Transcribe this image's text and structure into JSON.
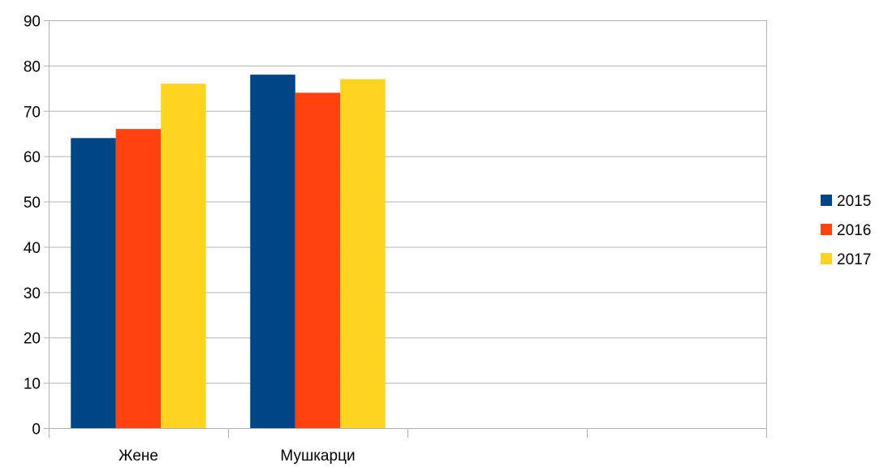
{
  "chart_data": {
    "type": "bar",
    "title": "",
    "xlabel": "",
    "ylabel": "",
    "categories": [
      "Жене",
      "Мушкарци",
      "",
      ""
    ],
    "series": [
      {
        "name": "2015",
        "color": "#004586",
        "values": [
          64,
          78,
          null,
          null
        ]
      },
      {
        "name": "2016",
        "color": "#ff420e",
        "values": [
          66,
          74,
          null,
          null
        ]
      },
      {
        "name": "2017",
        "color": "#ffd320",
        "values": [
          76,
          77,
          null,
          null
        ]
      }
    ],
    "ylim": [
      0,
      90
    ],
    "yticks": [
      "0",
      "10",
      "20",
      "30",
      "40",
      "50",
      "60",
      "70",
      "80",
      "90"
    ],
    "grid": true,
    "legend": "right"
  }
}
